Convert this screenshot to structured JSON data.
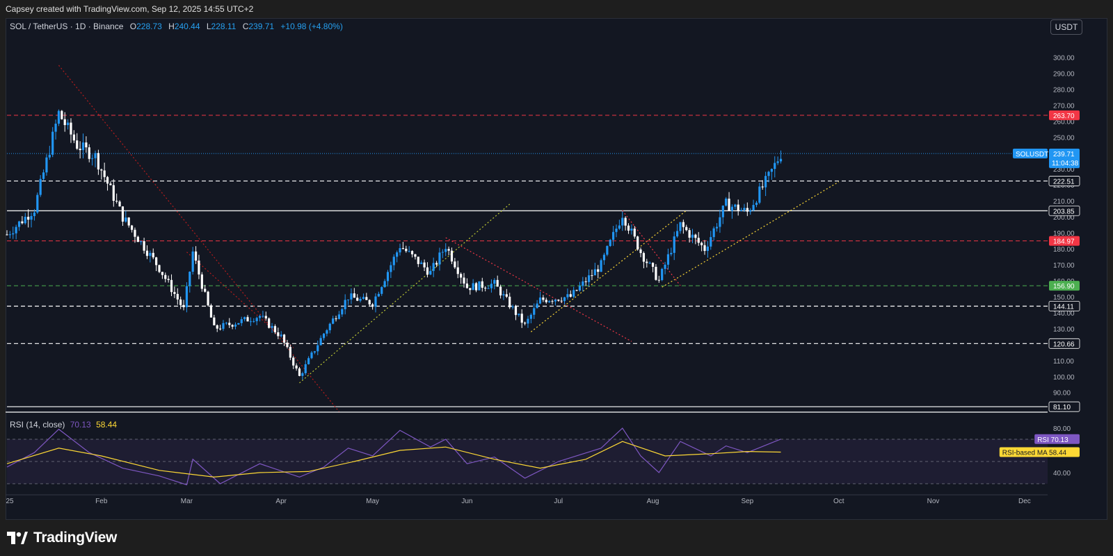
{
  "header": {
    "attribution": "Capsey created with TradingView.com, Sep 12, 2025 14:55 UTC+2"
  },
  "legend": {
    "symbol": "SOL / TetherUS · 1D · Binance",
    "o_label": "O",
    "o_value": "228.73",
    "h_label": "H",
    "h_value": "240.44",
    "l_label": "L",
    "l_value": "228.11",
    "c_label": "C",
    "c_value": "239.71",
    "change": "+10.98 (+4.80%)"
  },
  "currency_button": "USDT",
  "rsi_legend": {
    "label": "RSI (14, close)",
    "rsi_value": "70.13",
    "ma_value": "58.44"
  },
  "footer": {
    "brand": "TradingView",
    "logo_icon": "tradingview-logo-icon"
  },
  "colors": {
    "bg": "#131722",
    "up": "#2196f3",
    "down": "#ffffff",
    "rsi": "#7e57c2",
    "rsi_ma": "#fdd835"
  },
  "chart_data": [
    {
      "type": "candlestick",
      "symbol": "SOLUSDT",
      "x_labels": [
        "25",
        "Feb",
        "Mar",
        "Apr",
        "May",
        "Jun",
        "Jul",
        "Aug",
        "Sep",
        "Oct",
        "Nov",
        "Dec"
      ],
      "y_ticks": [
        "300.00",
        "290.00",
        "280.00",
        "270.00",
        "260.00",
        "250.00",
        "240.00",
        "230.00",
        "220.00",
        "210.00",
        "200.00",
        "190.00",
        "180.00",
        "170.00",
        "160.00",
        "150.00",
        "140.00",
        "130.00",
        "120.00",
        "110.00",
        "100.00",
        "90.00"
      ],
      "ylim": [
        79,
        315
      ],
      "price_label": {
        "name": "SOLUSDT",
        "value": "239.71",
        "countdown": "11:04:38"
      },
      "levels": [
        {
          "value": 263.7,
          "label": "263.70",
          "color": "#f23645",
          "style": "dashed"
        },
        {
          "value": 222.51,
          "label": "222.51",
          "color": "#ffffff",
          "style": "dashed"
        },
        {
          "value": 203.85,
          "label": "203.85",
          "color": "#ffffff",
          "style": "solid"
        },
        {
          "value": 184.97,
          "label": "184.97",
          "color": "#f23645",
          "style": "dashed"
        },
        {
          "value": 156.9,
          "label": "156.90",
          "color": "#4caf50",
          "style": "dashed"
        },
        {
          "value": 144.11,
          "label": "144.11",
          "color": "#ffffff",
          "style": "dashed"
        },
        {
          "value": 120.66,
          "label": "120.66",
          "color": "#ffffff",
          "style": "dashed"
        },
        {
          "value": 81.1,
          "label": "81.10",
          "color": "#ffffff",
          "style": "solid"
        }
      ],
      "trendlines": [
        {
          "from": [
            "Jan 18",
            295
          ],
          "to": [
            "Apr 20",
            78
          ],
          "color": "#b71c1c",
          "style": "dotted"
        },
        {
          "from": [
            "Mar 1",
            178
          ],
          "to": [
            "Apr 5",
            118
          ],
          "color": "#b71c1c",
          "style": "dotted"
        },
        {
          "from": [
            "Apr 7",
            96
          ],
          "to": [
            "Jun 15",
            208
          ],
          "color": "#c0ca33",
          "style": "dotted"
        },
        {
          "from": [
            "May 25",
            187
          ],
          "to": [
            "Jul 25",
            122
          ],
          "color": "#f23645",
          "style": "dotted"
        },
        {
          "from": [
            "Jun 22",
            128
          ],
          "to": [
            "Aug 12",
            204
          ],
          "color": "#fdd835",
          "style": "dotted"
        },
        {
          "from": [
            "Aug 4",
            156
          ],
          "to": [
            "Oct 1",
            222
          ],
          "color": "#fdd835",
          "style": "dotted"
        },
        {
          "from": [
            "Jul 22",
            204
          ],
          "to": [
            "Aug 10",
            157
          ],
          "color": "#f23645",
          "style": "dotted"
        }
      ],
      "close_path": [
        [
          "Jan 1",
          189
        ],
        [
          "Jan 10",
          205
        ],
        [
          "Jan 18",
          265
        ],
        [
          "Jan 24",
          245
        ],
        [
          "Jan 30",
          238
        ],
        [
          "Feb 8",
          200
        ],
        [
          "Feb 20",
          168
        ],
        [
          "Feb 28",
          142
        ],
        [
          "Mar 3",
          178
        ],
        [
          "Mar 10",
          130
        ],
        [
          "Mar 25",
          138
        ],
        [
          "Apr 1",
          125
        ],
        [
          "Apr 7",
          100
        ],
        [
          "Apr 15",
          127
        ],
        [
          "Apr 23",
          150
        ],
        [
          "May 1",
          146
        ],
        [
          "May 10",
          182
        ],
        [
          "May 20",
          165
        ],
        [
          "May 25",
          182
        ],
        [
          "Jun 1",
          156
        ],
        [
          "Jun 10",
          158
        ],
        [
          "Jun 20",
          132
        ],
        [
          "Jun 25",
          148
        ],
        [
          "Jul 5",
          150
        ],
        [
          "Jul 15",
          170
        ],
        [
          "Jul 22",
          202
        ],
        [
          "Jul 28",
          178
        ],
        [
          "Aug 3",
          160
        ],
        [
          "Aug 10",
          195
        ],
        [
          "Aug 18",
          180
        ],
        [
          "Aug 25",
          208
        ],
        [
          "Sep 1",
          203
        ],
        [
          "Sep 8",
          225
        ],
        [
          "Sep 12",
          239.71
        ]
      ]
    },
    {
      "type": "line",
      "title": "RSI (14, close)",
      "y_ticks": [
        "80.00",
        "40.00"
      ],
      "bands": [
        70,
        30
      ],
      "series": [
        {
          "name": "RSI",
          "value": "70.13",
          "color": "#7e57c2",
          "points": [
            [
              "Jan 1",
              45
            ],
            [
              "Jan 10",
              58
            ],
            [
              "Jan 18",
              79
            ],
            [
              "Jan 28",
              58
            ],
            [
              "Feb 8",
              44
            ],
            [
              "Feb 20",
              37
            ],
            [
              "Mar 1",
              29
            ],
            [
              "Mar 3",
              52
            ],
            [
              "Mar 12",
              30
            ],
            [
              "Mar 25",
              48
            ],
            [
              "Apr 7",
              36
            ],
            [
              "Apr 15",
              45
            ],
            [
              "Apr 23",
              62
            ],
            [
              "May 1",
              55
            ],
            [
              "May 10",
              78
            ],
            [
              "May 20",
              63
            ],
            [
              "May 25",
              70
            ],
            [
              "Jun 1",
              48
            ],
            [
              "Jun 10",
              54
            ],
            [
              "Jun 20",
              35
            ],
            [
              "Jul 1",
              50
            ],
            [
              "Jul 15",
              62
            ],
            [
              "Jul 22",
              80
            ],
            [
              "Jul 28",
              55
            ],
            [
              "Aug 3",
              40
            ],
            [
              "Aug 10",
              68
            ],
            [
              "Aug 20",
              55
            ],
            [
              "Aug 25",
              64
            ],
            [
              "Sep 1",
              58
            ],
            [
              "Sep 12",
              70.13
            ]
          ]
        },
        {
          "name": "RSI-based MA",
          "value": "58.44",
          "color": "#fdd835",
          "points": [
            [
              "Jan 1",
              48
            ],
            [
              "Jan 18",
              62
            ],
            [
              "Feb 1",
              55
            ],
            [
              "Feb 20",
              42
            ],
            [
              "Mar 10",
              36
            ],
            [
              "Mar 25",
              40
            ],
            [
              "Apr 10",
              41
            ],
            [
              "Apr 25",
              50
            ],
            [
              "May 10",
              60
            ],
            [
              "May 25",
              63
            ],
            [
              "Jun 10",
              52
            ],
            [
              "Jun 25",
              44
            ],
            [
              "Jul 10",
              52
            ],
            [
              "Jul 22",
              68
            ],
            [
              "Aug 5",
              55
            ],
            [
              "Aug 20",
              57
            ],
            [
              "Sep 1",
              59
            ],
            [
              "Sep 12",
              58.44
            ]
          ]
        }
      ],
      "line_labels": [
        {
          "name": "RSI",
          "value": "70.13",
          "color": "#7e57c2"
        },
        {
          "name": "RSI-based MA",
          "value": "58.44",
          "color": "#fdd835"
        }
      ]
    }
  ]
}
